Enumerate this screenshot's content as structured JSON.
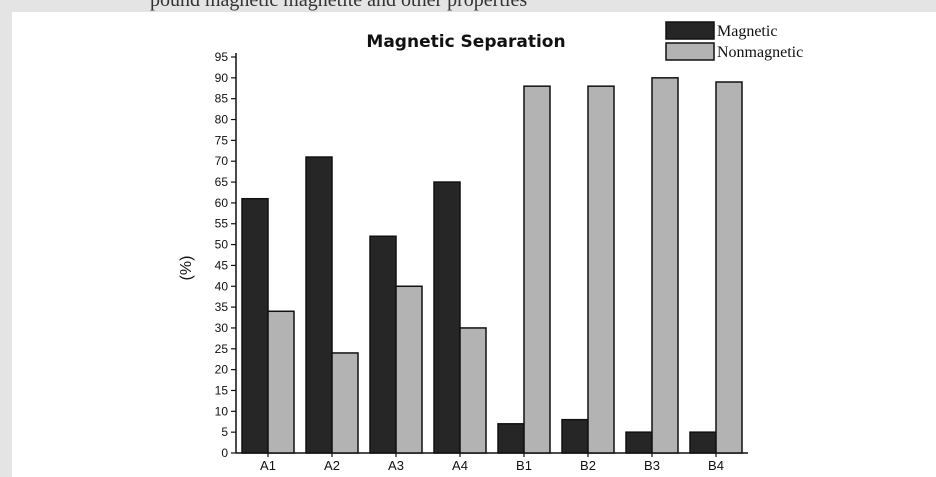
{
  "header_fragment": "pound magnetic magnetite and other properties",
  "chart_data": {
    "type": "bar",
    "title": "Magnetic Separation",
    "xlabel": "",
    "ylabel": "(%)",
    "categories": [
      "A1",
      "A2",
      "A3",
      "A4",
      "B1",
      "B2",
      "B3",
      "B4"
    ],
    "series": [
      {
        "name": "Magnetic",
        "values": [
          61,
          71,
          52,
          65,
          7,
          8,
          5,
          5
        ],
        "color": "#262626"
      },
      {
        "name": "Nonmagnetic",
        "values": [
          34,
          24,
          40,
          30,
          88,
          88,
          90,
          89
        ],
        "color": "#b3b3b3"
      }
    ],
    "ylim": [
      0,
      95
    ],
    "yticks": [
      0,
      5,
      10,
      15,
      20,
      25,
      30,
      35,
      40,
      45,
      50,
      55,
      60,
      65,
      70,
      75,
      80,
      85,
      90,
      95
    ],
    "grid": false,
    "legend": "top-right"
  }
}
